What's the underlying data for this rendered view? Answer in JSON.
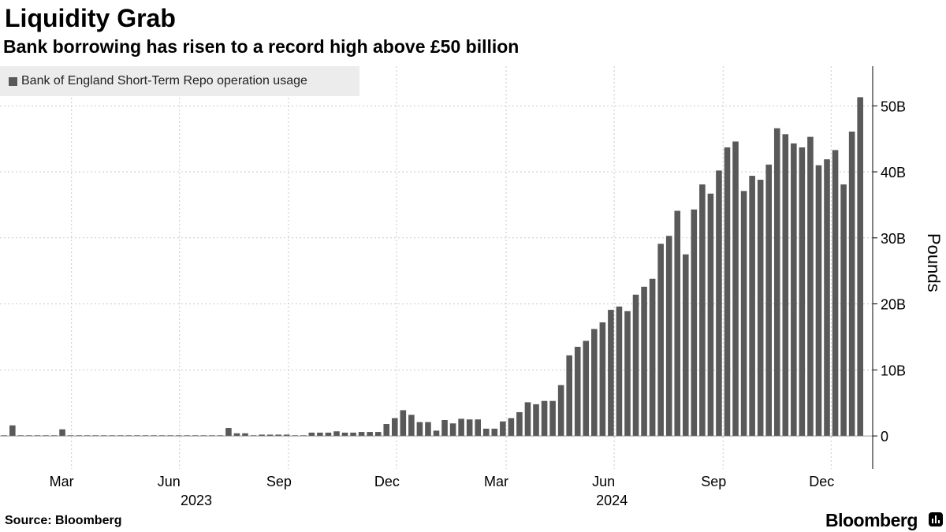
{
  "header": {
    "title": "Liquidity Grab",
    "subtitle": "Bank borrowing has risen to a record high above £50 billion"
  },
  "footer": {
    "source": "Source: Bloomberg",
    "brand": "Bloomberg"
  },
  "colors": {
    "bar": "#595959",
    "grid": "#c8c8c8",
    "legend_bg": "#ececec",
    "axis": "#000000"
  },
  "chart_data": {
    "type": "bar",
    "title": "Liquidity Grab",
    "subtitle": "Bank borrowing has risen to a record high above £50 billion",
    "legend": [
      "Bank of England Short-Term Repo operation usage"
    ],
    "ylabel": "Pounds",
    "ylim": [
      -5,
      56
    ],
    "yticks": [
      0,
      10,
      20,
      30,
      40,
      50
    ],
    "ytick_labels": [
      "0",
      "10B",
      "20B",
      "30B",
      "40B",
      "50B"
    ],
    "x_unit": "weeks since first week of 2023",
    "x_start": 0,
    "x_end": 105,
    "x_month_ticks": [
      {
        "label": "Mar",
        "x": 8.6
      },
      {
        "label": "Jun",
        "x": 21.6
      },
      {
        "label": "Sep",
        "x": 34.7
      },
      {
        "label": "Dec",
        "x": 47.7
      },
      {
        "label": "Mar",
        "x": 60.9
      },
      {
        "label": "Jun",
        "x": 73.9
      },
      {
        "label": "Sep",
        "x": 87.0
      },
      {
        "label": "Dec",
        "x": 100.0
      }
    ],
    "x_year_labels": [
      {
        "label": "2023",
        "x": 24
      },
      {
        "label": "2024",
        "x": 74
      }
    ],
    "series": [
      {
        "name": "Bank of England Short-Term Repo operation usage",
        "values": [
          0.1,
          1.6,
          0.1,
          0.1,
          0.1,
          0.1,
          0.1,
          1.0,
          0.1,
          0.1,
          0.1,
          0.1,
          0.1,
          0.1,
          0.1,
          0.1,
          0.1,
          0.1,
          0.1,
          0.1,
          0.1,
          0.1,
          0.1,
          0.1,
          0.1,
          0.1,
          0.1,
          1.2,
          0.4,
          0.4,
          0.1,
          0.2,
          0.2,
          0.2,
          0.2,
          0.1,
          0.1,
          0.5,
          0.5,
          0.5,
          0.7,
          0.5,
          0.5,
          0.6,
          0.6,
          0.6,
          1.8,
          2.7,
          3.9,
          3.2,
          2.1,
          2.1,
          0.8,
          2.4,
          1.9,
          2.6,
          2.5,
          2.5,
          1.1,
          1.1,
          2.2,
          2.7,
          3.6,
          5.1,
          4.8,
          5.3,
          5.3,
          7.7,
          12.2,
          13.5,
          14.4,
          16.2,
          17.2,
          19.1,
          19.6,
          18.9,
          21.4,
          22.6,
          23.8,
          29.1,
          30.3,
          34.1,
          27.5,
          34.3,
          38.1,
          36.7,
          40.2,
          43.7,
          44.6,
          37.1,
          39.4,
          38.8,
          41.1,
          46.6,
          45.7,
          44.3,
          43.7,
          45.3,
          41.0,
          41.9,
          43.3,
          38.1,
          46.1,
          51.3
        ]
      }
    ]
  }
}
